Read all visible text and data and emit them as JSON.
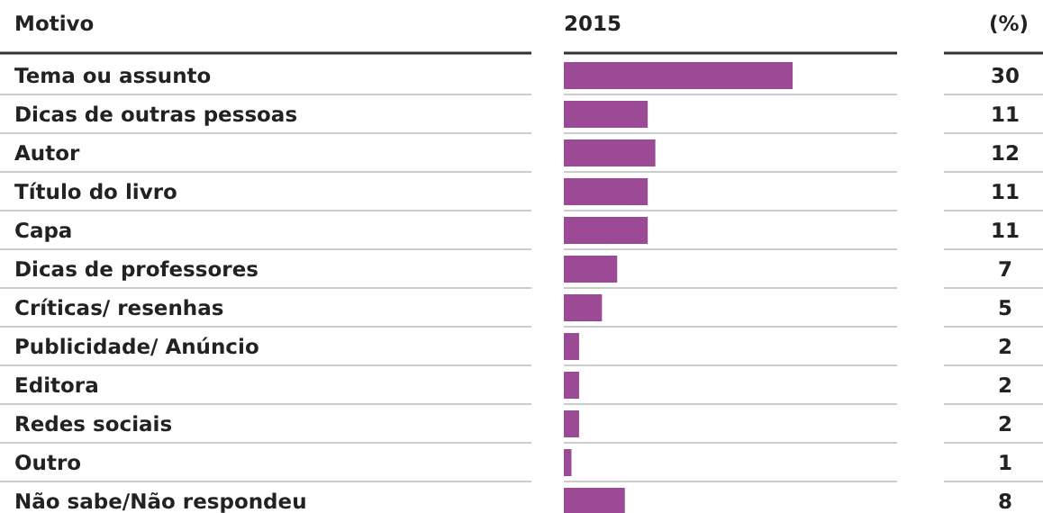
{
  "chart_data": {
    "type": "bar",
    "orientation": "horizontal",
    "ylabel": "Motivo",
    "annotations": [
      "(%)"
    ],
    "data_labels": true,
    "categories": [
      "Tema ou assunto",
      "Dicas de outras pessoas",
      "Autor",
      "Título do livro",
      "Capa",
      "Dicas de professores",
      "Críticas/ resenhas",
      "Publicidade/ Anúncio",
      "Editora",
      "Redes sociais",
      "Outro",
      "Não sabe/Não respondeu"
    ],
    "series": [
      {
        "name": "2015",
        "color": "#9c4a96",
        "values": [
          30,
          11,
          12,
          11,
          11,
          7,
          5,
          2,
          2,
          2,
          1,
          8
        ]
      }
    ]
  }
}
